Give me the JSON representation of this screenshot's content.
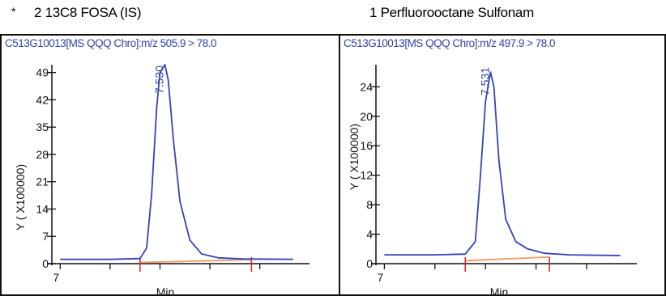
{
  "panels": [
    {
      "title": "2 13C8 FOSA (IS)",
      "title_marker": "*",
      "header": "C513G10013[MS QQQ Chro]:m/z  505.9 > 78.0",
      "ylabel": "Y ( X100000)",
      "xlabel": "Min",
      "y_ticks": [
        "0",
        "7",
        "14",
        "21",
        "28",
        "35",
        "42",
        "49"
      ],
      "x_tick": "7",
      "peak_label": "7.530"
    },
    {
      "title": "1 Perfluorooctane Sulfonam",
      "header": "C513G10013[MS QQQ Chro]:m/z  497.9 > 78.0",
      "ylabel": "Y ( X100000)",
      "xlabel": "Min",
      "y_ticks": [
        "0",
        "4",
        "8",
        "12",
        "16",
        "20",
        "24"
      ],
      "x_tick": "7",
      "peak_label": "7.531"
    }
  ],
  "colors": {
    "trace": "#3344bb",
    "baseline": "#f0a070",
    "marker": "#dd2222",
    "header": "#3344aa"
  },
  "chart_data": [
    {
      "type": "line",
      "title": "2 13C8 FOSA (IS)",
      "xlabel": "Min",
      "ylabel": "Y ( X100000)",
      "ylim": [
        0,
        51
      ],
      "y_ticks": [
        0,
        7,
        14,
        21,
        28,
        35,
        42,
        49
      ],
      "xlim": [
        6.85,
        8.35
      ],
      "series": [
        {
          "x": [
            6.9,
            7.2,
            7.38,
            7.42,
            7.45,
            7.48,
            7.5,
            7.53,
            7.55,
            7.58,
            7.62,
            7.68,
            7.75,
            7.85,
            8.0,
            8.3
          ],
          "y": [
            1.1,
            1.1,
            1.3,
            4.0,
            18.0,
            40.0,
            49.0,
            51.0,
            47.0,
            32.0,
            16.0,
            6.0,
            2.5,
            1.5,
            1.2,
            1.1
          ]
        },
        {
          "x": [
            7.38,
            8.05
          ],
          "y": [
            0.3,
            1.0
          ]
        }
      ],
      "peak_retention_time": 7.53,
      "integration_markers": [
        7.38,
        8.05
      ]
    },
    {
      "type": "line",
      "title": "1 Perfluorooctane Sulfonam",
      "xlabel": "Min",
      "ylabel": "Y ( X100000)",
      "ylim": [
        0,
        27
      ],
      "y_ticks": [
        0,
        4,
        8,
        12,
        16,
        20,
        24
      ],
      "xlim": [
        6.85,
        8.35
      ],
      "series": [
        {
          "x": [
            6.9,
            7.2,
            7.38,
            7.44,
            7.47,
            7.5,
            7.53,
            7.55,
            7.58,
            7.62,
            7.68,
            7.75,
            7.85,
            8.0,
            8.3
          ],
          "y": [
            1.2,
            1.2,
            1.3,
            3.0,
            12.0,
            22.0,
            26.0,
            24.0,
            14.0,
            6.0,
            3.0,
            2.0,
            1.4,
            1.2,
            1.1
          ]
        },
        {
          "x": [
            7.38,
            7.88
          ],
          "y": [
            0.4,
            0.9
          ]
        }
      ],
      "peak_retention_time": 7.531,
      "integration_markers": [
        7.38,
        7.88
      ]
    }
  ]
}
